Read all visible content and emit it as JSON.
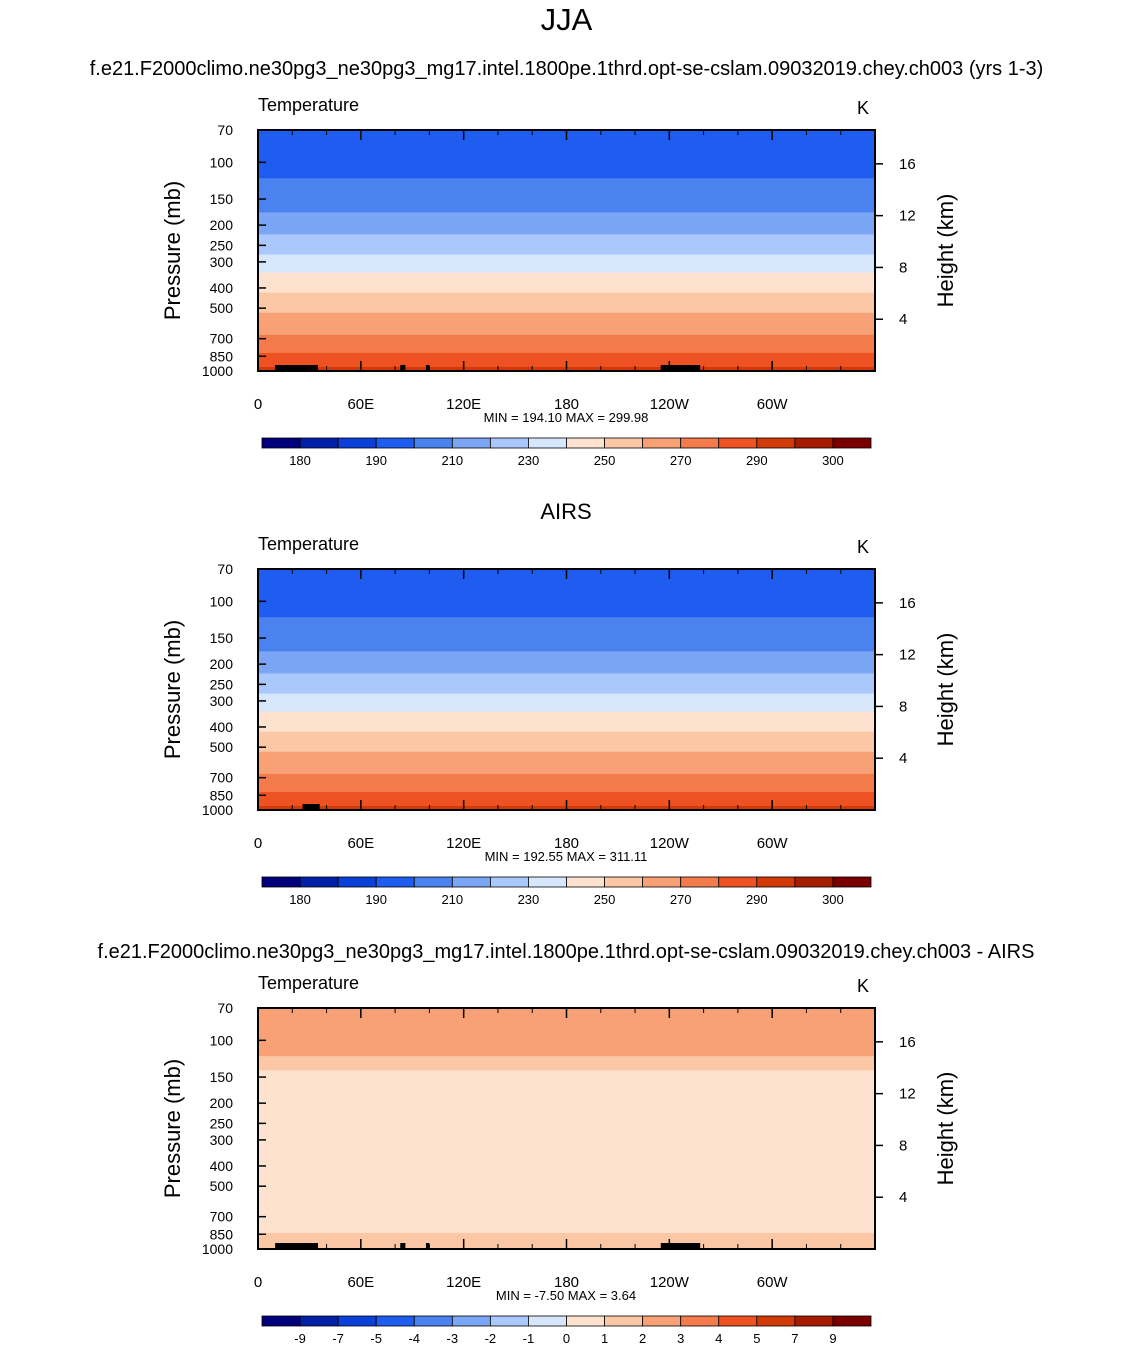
{
  "figure": {
    "title": "JJA",
    "subtitle": "f.e21.F2000climo.ne30pg3_ne30pg3_mg17.intel.1800pe.1thrd.opt-se-cslam.09032019.chey.ch003 (yrs 1-3)"
  },
  "colors": {
    "temp_palette": [
      "#00007c",
      "#0020a8",
      "#0a3fd8",
      "#1f5cf0",
      "#4a82f0",
      "#7ba5f5",
      "#aac8fb",
      "#d6e7fc",
      "#fde3cf",
      "#fbc7a5",
      "#f9a176",
      "#f47b4c",
      "#ee5222",
      "#d23a08",
      "#a61c00",
      "#7a0000"
    ],
    "diff_palette": [
      "#00007c",
      "#0020a8",
      "#0a3fd8",
      "#1f5cf0",
      "#4a82f0",
      "#7ba5f5",
      "#aac8fb",
      "#d6e7fc",
      "#fde3cf",
      "#fbc7a5",
      "#f9a176",
      "#f47b4c",
      "#ee5222",
      "#d23a08",
      "#a61c00",
      "#7a0000"
    ],
    "topography": "#000000"
  },
  "chart_data": [
    {
      "type": "heatmap",
      "panel_title": "",
      "left_label": "Temperature",
      "right_label": "K",
      "ylabel": "Pressure (mb)",
      "y2label": "Height (km)",
      "x_ticks": [
        "0",
        "60E",
        "120E",
        "180",
        "120W",
        "60W"
      ],
      "x_tick_lon": [
        0,
        60,
        120,
        180,
        240,
        300
      ],
      "y_ticks": [
        "70",
        "100",
        "150",
        "200",
        "250",
        "300",
        "400",
        "500",
        "700",
        "850",
        "1000"
      ],
      "y_tick_p": [
        70,
        100,
        150,
        200,
        250,
        300,
        400,
        500,
        700,
        850,
        1000
      ],
      "y2_ticks": [
        "16",
        "12",
        "8",
        "4"
      ],
      "y2_tick_km": [
        16,
        12,
        8,
        4
      ],
      "stats": "MIN = 194.10  MAX = 299.98",
      "colorbar_levels": [
        175,
        180,
        185,
        190,
        200,
        210,
        220,
        230,
        240,
        250,
        260,
        270,
        280,
        290,
        295,
        300
      ],
      "colorbar_labels": [
        "180",
        "190",
        "210",
        "230",
        "250",
        "270",
        "290",
        "300"
      ],
      "profile": [
        {
          "p": 70,
          "v": 196
        },
        {
          "p": 100,
          "v": 196
        },
        {
          "p": 150,
          "v": 205
        },
        {
          "p": 200,
          "v": 215
        },
        {
          "p": 250,
          "v": 225
        },
        {
          "p": 300,
          "v": 235
        },
        {
          "p": 400,
          "v": 248
        },
        {
          "p": 500,
          "v": 258
        },
        {
          "p": 700,
          "v": 272
        },
        {
          "p": 850,
          "v": 282
        },
        {
          "p": 1000,
          "v": 293
        }
      ],
      "topography_lon": [
        [
          10,
          30
        ],
        [
          25,
          35
        ],
        [
          83,
          86
        ],
        [
          98,
          100
        ],
        [
          235,
          258
        ]
      ]
    },
    {
      "type": "heatmap",
      "panel_title": "AIRS",
      "left_label": "Temperature",
      "right_label": "K",
      "ylabel": "Pressure (mb)",
      "y2label": "Height (km)",
      "x_ticks": [
        "0",
        "60E",
        "120E",
        "180",
        "120W",
        "60W"
      ],
      "x_tick_lon": [
        0,
        60,
        120,
        180,
        240,
        300
      ],
      "y_ticks": [
        "70",
        "100",
        "150",
        "200",
        "250",
        "300",
        "400",
        "500",
        "700",
        "850",
        "1000"
      ],
      "y_tick_p": [
        70,
        100,
        150,
        200,
        250,
        300,
        400,
        500,
        700,
        850,
        1000
      ],
      "y2_ticks": [
        "16",
        "12",
        "8",
        "4"
      ],
      "y2_tick_km": [
        16,
        12,
        8,
        4
      ],
      "stats": "MIN = 192.55  MAX = 311.11",
      "colorbar_levels": [
        175,
        180,
        185,
        190,
        200,
        210,
        220,
        230,
        240,
        250,
        260,
        270,
        280,
        290,
        295,
        300
      ],
      "colorbar_labels": [
        "180",
        "190",
        "210",
        "230",
        "250",
        "270",
        "290",
        "300"
      ],
      "profile": [
        {
          "p": 70,
          "v": 196
        },
        {
          "p": 100,
          "v": 196
        },
        {
          "p": 150,
          "v": 205
        },
        {
          "p": 200,
          "v": 215
        },
        {
          "p": 250,
          "v": 225
        },
        {
          "p": 300,
          "v": 235
        },
        {
          "p": 400,
          "v": 248
        },
        {
          "p": 500,
          "v": 258
        },
        {
          "p": 700,
          "v": 272
        },
        {
          "p": 850,
          "v": 282
        },
        {
          "p": 1000,
          "v": 293
        }
      ],
      "topography_lon": [
        [
          26,
          36
        ]
      ]
    },
    {
      "type": "heatmap",
      "panel_title": "f.e21.F2000climo.ne30pg3_ne30pg3_mg17.intel.1800pe.1thrd.opt-se-cslam.09032019.chey.ch003 - AIRS",
      "left_label": "Temperature",
      "right_label": "K",
      "ylabel": "Pressure (mb)",
      "y2label": "Height (km)",
      "x_ticks": [
        "0",
        "60E",
        "120E",
        "180",
        "120W",
        "60W"
      ],
      "x_tick_lon": [
        0,
        60,
        120,
        180,
        240,
        300
      ],
      "y_ticks": [
        "70",
        "100",
        "150",
        "200",
        "250",
        "300",
        "400",
        "500",
        "700",
        "850",
        "1000"
      ],
      "y_tick_p": [
        70,
        100,
        150,
        200,
        250,
        300,
        400,
        500,
        700,
        850,
        1000
      ],
      "y2_ticks": [
        "16",
        "12",
        "8",
        "4"
      ],
      "y2_tick_km": [
        16,
        12,
        8,
        4
      ],
      "stats": "MIN =  -7.50  MAX =   3.64",
      "colorbar_levels": [
        -10,
        -9,
        -8,
        -7,
        -6,
        -5,
        -4,
        -3,
        -2,
        -1,
        0,
        1,
        2,
        3,
        4,
        5
      ],
      "colorbar_labels": [
        "-9",
        "-7",
        "-5",
        "-4",
        "-3",
        "-2",
        "-1",
        "0",
        "1",
        "2",
        "3",
        "4",
        "5",
        "7",
        "9"
      ],
      "profile": [
        {
          "p": 70,
          "v": 0.5
        },
        {
          "p": 100,
          "v": 1.0
        },
        {
          "p": 130,
          "v": -0.5
        },
        {
          "p": 150,
          "v": -1.5
        },
        {
          "p": 200,
          "v": -1.5
        },
        {
          "p": 300,
          "v": -1.5
        },
        {
          "p": 500,
          "v": -1.5
        },
        {
          "p": 700,
          "v": -1.5
        },
        {
          "p": 1000,
          "v": -0.5
        }
      ],
      "topography_lon": [
        [
          10,
          30
        ],
        [
          25,
          35
        ],
        [
          83,
          86
        ],
        [
          98,
          100
        ],
        [
          235,
          258
        ]
      ]
    }
  ]
}
